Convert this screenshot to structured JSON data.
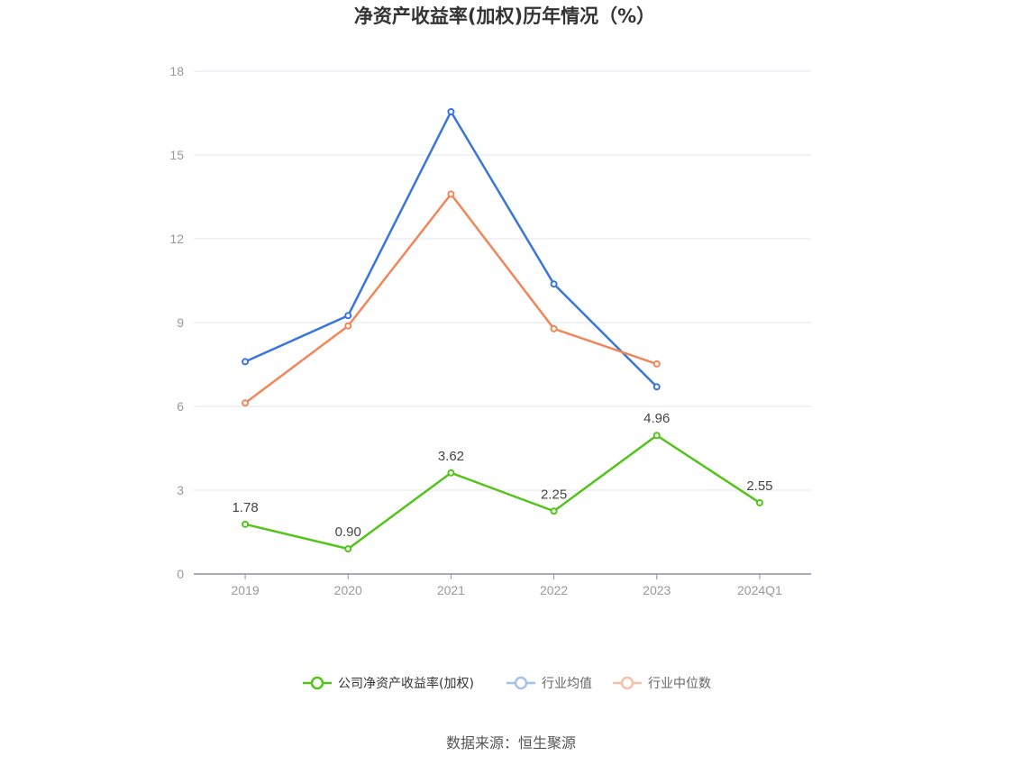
{
  "title": "净资产收益率(加权)历年情况（%）",
  "source": "数据来源：恒生聚源",
  "chart_data": {
    "type": "line",
    "title": "净资产收益率(加权)历年情况（%）",
    "categories": [
      "2019",
      "2020",
      "2021",
      "2022",
      "2023",
      "2024Q1"
    ],
    "yticks": [
      0,
      3,
      6,
      9,
      12,
      15,
      18
    ],
    "ylim": [
      0,
      18
    ],
    "grid": true,
    "legend_position": "bottom-center",
    "series": [
      {
        "name": "公司净资产收益率(加权)",
        "color": "#52c41a",
        "values": [
          1.78,
          0.9,
          3.62,
          2.25,
          4.96,
          2.55
        ],
        "labels": [
          "1.78",
          "0.90",
          "3.62",
          "2.25",
          "4.96",
          "2.55"
        ],
        "show_labels": true
      },
      {
        "name": "行业均值",
        "color": "#3a75dc",
        "values": [
          7.6,
          9.25,
          16.55,
          10.38,
          6.7,
          null
        ],
        "show_labels": false
      },
      {
        "name": "行业中位数",
        "color": "#f0875a",
        "values": [
          6.12,
          8.88,
          13.6,
          8.78,
          7.52,
          null
        ],
        "show_labels": false
      }
    ]
  }
}
